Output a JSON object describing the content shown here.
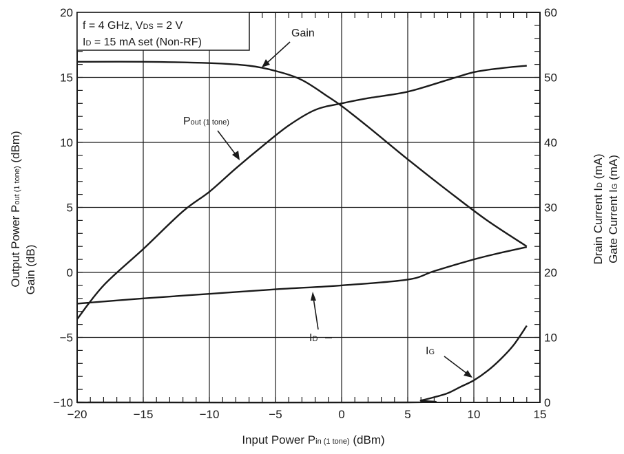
{
  "chart_data": {
    "type": "line",
    "xlabel": "Input Power",
    "xlabel_symbol": "P",
    "xlabel_sub": "in (1 tone)",
    "xlabel_unit": "(dBm)",
    "ylabel_left_line1": "Output Power",
    "ylabel_left_symbol": "P",
    "ylabel_left_sub": "out (1 tone)",
    "ylabel_left_unit": "(dBm)",
    "ylabel_left_line2": "Gain  (dB)",
    "ylabel_right_line1": "Drain Current",
    "ylabel_right_line1_symbol": "I",
    "ylabel_right_line1_sub": "D",
    "ylabel_right_line1_unit": "(mA)",
    "ylabel_right_line2": "Gate Current",
    "ylabel_right_line2_symbol": "I",
    "ylabel_right_line2_sub": "G",
    "ylabel_right_line2_unit": "(mA)",
    "xlim": [
      -20,
      15
    ],
    "ylim_left": [
      -10,
      20
    ],
    "ylim_right": [
      0,
      60
    ],
    "x_ticks": [
      -20,
      -15,
      -10,
      -5,
      0,
      5,
      10,
      15
    ],
    "x_tick_labels": [
      "−20",
      "−15",
      "−10",
      "−5",
      "0",
      "5",
      "10",
      "15"
    ],
    "y_left_ticks": [
      -10,
      -5,
      0,
      5,
      10,
      15,
      20
    ],
    "y_left_tick_labels": [
      "−10",
      "−5",
      "0",
      "5",
      "10",
      "15",
      "20"
    ],
    "y_right_ticks": [
      0,
      10,
      20,
      30,
      40,
      50,
      60
    ],
    "y_right_tick_labels": [
      "0",
      "10",
      "20",
      "30",
      "40",
      "50",
      "60"
    ],
    "grid": true,
    "condition_box": {
      "line1_a": "f = 4 GHz, V",
      "line1_sub": "DS",
      "line1_b": " = 2 V",
      "line2_a": "I",
      "line2_sub": "D",
      "line2_b": " = 15 mA set (Non-RF)"
    },
    "series": [
      {
        "name": "Gain",
        "axis": "left",
        "x": [
          -20,
          -15,
          -10,
          -7,
          -5,
          -3,
          -1,
          0,
          2,
          5,
          8,
          11,
          14
        ],
        "y": [
          16.2,
          16.2,
          16.1,
          15.9,
          15.5,
          14.8,
          13.5,
          12.8,
          11.2,
          8.7,
          6.3,
          4.0,
          2.0
        ]
      },
      {
        "name": "Pout (1 tone)",
        "axis": "left",
        "x": [
          -20,
          -18,
          -15,
          -12,
          -10,
          -8,
          -6,
          -4,
          -2,
          0,
          2,
          5,
          8,
          10,
          12,
          14
        ],
        "y": [
          -3.6,
          -1.0,
          1.8,
          4.7,
          6.2,
          8.0,
          9.7,
          11.3,
          12.5,
          13.0,
          13.4,
          13.9,
          14.8,
          15.4,
          15.7,
          15.9
        ]
      },
      {
        "name": "ID",
        "axis": "right",
        "x": [
          -20,
          -15,
          -10,
          -5,
          0,
          5,
          7,
          10,
          12,
          14
        ],
        "y": [
          15.2,
          16.0,
          16.7,
          17.4,
          18.0,
          18.9,
          20.2,
          22.0,
          23.0,
          23.9
        ]
      },
      {
        "name": "IG",
        "axis": "right",
        "x": [
          -20,
          5,
          6,
          7,
          8,
          9,
          10,
          11,
          12,
          13,
          14
        ],
        "y": [
          0,
          0,
          0.3,
          0.8,
          1.4,
          2.4,
          3.4,
          4.8,
          6.6,
          8.8,
          11.8
        ]
      }
    ],
    "annotations": [
      {
        "id": "gain",
        "text": "Gain"
      },
      {
        "id": "pout",
        "symbol": "P",
        "sub": "out (1 tone)"
      },
      {
        "id": "id",
        "symbol": "I",
        "sub": "D"
      },
      {
        "id": "ig",
        "symbol": "I",
        "sub": "G"
      }
    ]
  }
}
